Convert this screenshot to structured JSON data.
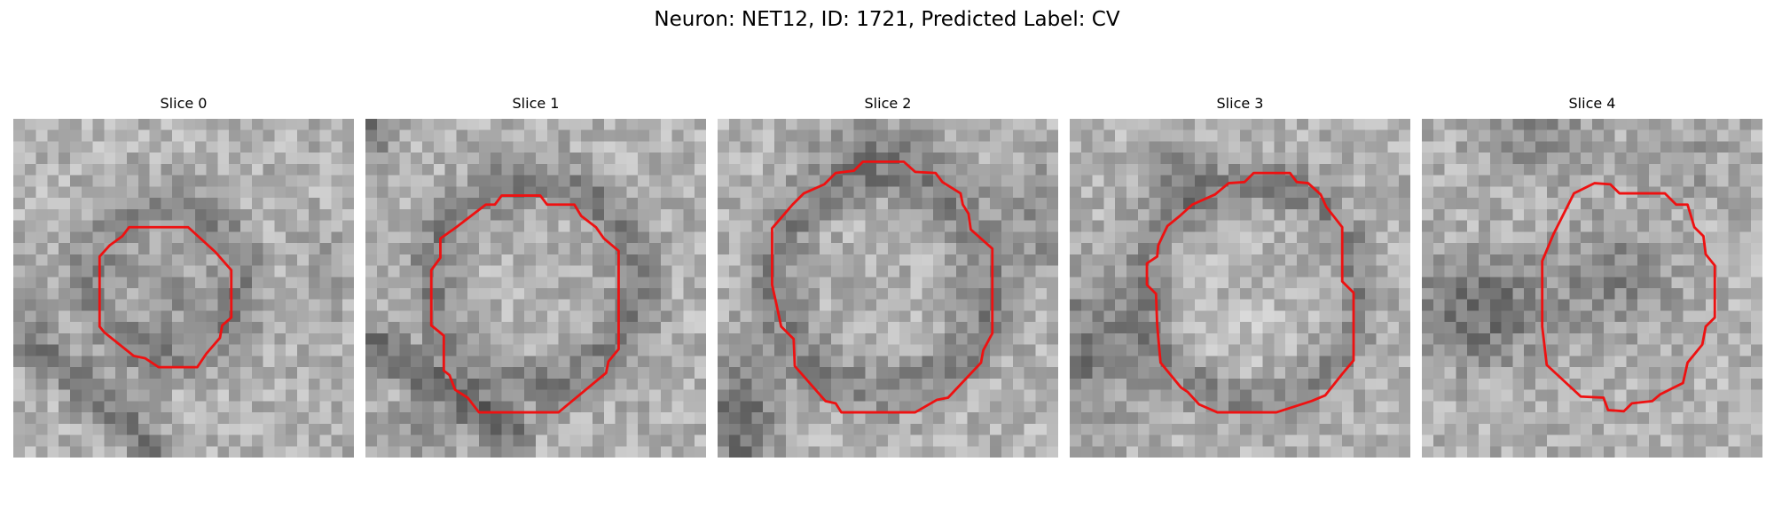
{
  "figure": {
    "title": "Neuron: NET12, ID: 1721, Predicted Label: CV",
    "outline_color": "#ee1111",
    "colormap": "grayscale",
    "slices": [
      {
        "label": "Slice 0"
      },
      {
        "label": "Slice 1"
      },
      {
        "label": "Slice 2"
      },
      {
        "label": "Slice 3"
      },
      {
        "label": "Slice 4"
      }
    ]
  }
}
